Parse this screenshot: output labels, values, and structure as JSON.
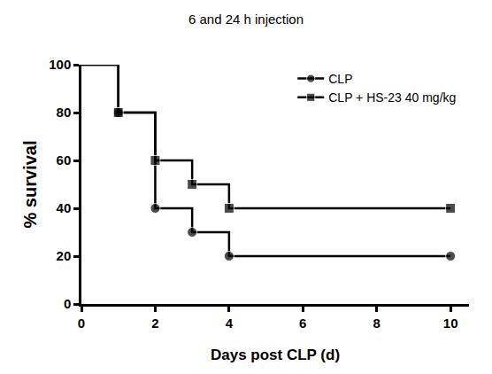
{
  "chart_data": {
    "type": "line",
    "title": "6 and 24 h injection",
    "x_label": "Days post CLP (d)",
    "y_label": "% survival",
    "line_style": "step",
    "series": [
      {
        "name": "CLP",
        "color": "#000000",
        "marker": "circle",
        "x": [
          0,
          1,
          2,
          3,
          4,
          10
        ],
        "values": [
          100,
          80,
          40,
          30,
          20,
          20
        ]
      },
      {
        "name": "CLP + HS-23 40 mg/kg",
        "color": "#000000",
        "marker": "square",
        "x": [
          0,
          1,
          2,
          3,
          4,
          10
        ],
        "values": [
          100,
          80,
          60,
          50,
          40,
          40
        ]
      }
    ],
    "xlim": [
      0,
      10.5
    ],
    "xticks": [
      0,
      2,
      4,
      6,
      8,
      10
    ],
    "ylim": [
      0,
      100
    ],
    "yticks": [
      0,
      20,
      40,
      60,
      80,
      100
    ],
    "grid": false,
    "legend": "upper right"
  }
}
